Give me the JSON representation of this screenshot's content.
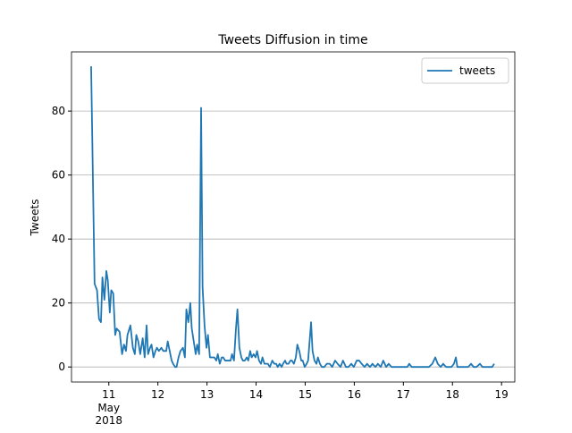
{
  "chart_data": {
    "type": "line",
    "title": "Tweets Diffusion in time",
    "ylabel": "Tweets",
    "x_offset_label": [
      "May",
      "2018"
    ],
    "x": [
      10.64,
      10.71,
      10.76,
      10.8,
      10.84,
      10.87,
      10.91,
      10.95,
      10.98,
      11.02,
      11.05,
      11.09,
      11.13,
      11.16,
      11.22,
      11.27,
      11.31,
      11.35,
      11.38,
      11.44,
      11.49,
      11.53,
      11.56,
      11.6,
      11.64,
      11.69,
      11.73,
      11.77,
      11.8,
      11.84,
      11.87,
      11.91,
      11.95,
      11.98,
      12.02,
      12.07,
      12.11,
      12.17,
      12.2,
      12.24,
      12.28,
      12.31,
      12.35,
      12.38,
      12.42,
      12.46,
      12.51,
      12.55,
      12.58,
      12.62,
      12.66,
      12.69,
      12.73,
      12.77,
      12.8,
      12.84,
      12.88,
      12.91,
      12.95,
      12.99,
      13.02,
      13.06,
      13.11,
      13.15,
      13.19,
      13.22,
      13.26,
      13.3,
      13.33,
      13.37,
      13.4,
      13.44,
      13.48,
      13.51,
      13.55,
      13.59,
      13.62,
      13.66,
      13.7,
      13.73,
      13.77,
      13.81,
      13.84,
      13.88,
      13.91,
      13.95,
      13.99,
      14.02,
      14.06,
      14.1,
      14.13,
      14.17,
      14.21,
      14.24,
      14.28,
      14.33,
      14.37,
      14.41,
      14.44,
      14.48,
      14.52,
      14.55,
      14.59,
      14.62,
      14.66,
      14.7,
      14.73,
      14.77,
      14.81,
      14.84,
      14.88,
      14.92,
      14.95,
      14.99,
      15.03,
      15.06,
      15.12,
      15.15,
      15.19,
      15.23,
      15.26,
      15.3,
      15.34,
      15.39,
      15.44,
      15.5,
      15.55,
      15.61,
      15.66,
      15.72,
      15.77,
      15.83,
      15.88,
      15.94,
      15.99,
      16.05,
      16.1,
      16.15,
      16.21,
      16.26,
      16.32,
      16.37,
      16.43,
      16.48,
      16.54,
      16.59,
      16.65,
      16.7,
      16.76,
      16.81,
      16.87,
      16.92,
      16.97,
      17.03,
      17.08,
      17.12,
      17.17,
      17.25,
      17.34,
      17.43,
      17.52,
      17.59,
      17.65,
      17.7,
      17.76,
      17.81,
      17.87,
      17.92,
      17.98,
      18.03,
      18.07,
      18.1,
      18.18,
      18.25,
      18.32,
      18.38,
      18.43,
      18.49,
      18.56,
      18.61,
      18.69,
      18.76,
      18.81,
      18.85
    ],
    "series": [
      {
        "name": "tweets",
        "color": "#1f77b4",
        "values": [
          94,
          26,
          24,
          15,
          14,
          28,
          21,
          30,
          27,
          17,
          24,
          23,
          10,
          12,
          11,
          4,
          7,
          5,
          10,
          13,
          6,
          4,
          10,
          8,
          4,
          9,
          3,
          13,
          4,
          6,
          7,
          3,
          5,
          6,
          5,
          6,
          5,
          5,
          8,
          5,
          2,
          1,
          0,
          0,
          3,
          5,
          6,
          3,
          18,
          14,
          20,
          12,
          8,
          4,
          7,
          4,
          81,
          25,
          13,
          6,
          10,
          3,
          3,
          3,
          2,
          4,
          1,
          3,
          3,
          2,
          2,
          2,
          2,
          4,
          2,
          12,
          18,
          6,
          3,
          2,
          2,
          3,
          2,
          5,
          3,
          4,
          3,
          5,
          2,
          1,
          3,
          1,
          1,
          1,
          0,
          2,
          1,
          1,
          0,
          1,
          0,
          1,
          2,
          1,
          1,
          2,
          2,
          1,
          3,
          7,
          5,
          2,
          2,
          0,
          1,
          2,
          14,
          5,
          2,
          1,
          3,
          1,
          0,
          0,
          1,
          1,
          0,
          2,
          1,
          0,
          2,
          0,
          0,
          1,
          0,
          2,
          2,
          1,
          0,
          1,
          0,
          1,
          0,
          1,
          0,
          2,
          0,
          1,
          0,
          0,
          0,
          0,
          0,
          0,
          0,
          1,
          0,
          0,
          0,
          0,
          0,
          1,
          3,
          1,
          0,
          1,
          0,
          0,
          0,
          1,
          3,
          0,
          0,
          0,
          0,
          1,
          0,
          0,
          1,
          0,
          0,
          0,
          0,
          1
        ]
      }
    ],
    "xlim": [
      10.24,
      19.27
    ],
    "xticks": [
      11,
      12,
      13,
      14,
      15,
      16,
      17,
      18,
      19
    ],
    "ylim": [
      -4.7,
      98.5
    ],
    "yticks": [
      0,
      20,
      40,
      60,
      80
    ],
    "grid": "y",
    "legend": "upper right"
  }
}
